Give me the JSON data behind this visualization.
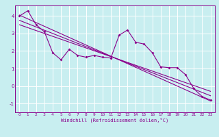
{
  "xlabel": "Windchill (Refroidissement éolien,°C)",
  "background_color": "#c8eef0",
  "line_color": "#8b008b",
  "grid_color": "#ffffff",
  "xlim": [
    -0.5,
    23.5
  ],
  "ylim": [
    -1.5,
    4.6
  ],
  "yticks": [
    -1,
    0,
    1,
    2,
    3,
    4
  ],
  "xticks": [
    0,
    1,
    2,
    3,
    4,
    5,
    6,
    7,
    8,
    9,
    10,
    11,
    12,
    13,
    14,
    15,
    16,
    17,
    18,
    19,
    20,
    21,
    22,
    23
  ],
  "data_x": [
    0,
    1,
    2,
    3,
    4,
    5,
    6,
    7,
    8,
    9,
    10,
    11,
    12,
    13,
    14,
    15,
    16,
    17,
    18,
    19,
    20,
    21,
    22,
    23
  ],
  "data_y": [
    4.0,
    4.3,
    3.5,
    3.1,
    1.9,
    1.5,
    2.1,
    1.75,
    1.65,
    1.75,
    1.65,
    1.6,
    2.9,
    3.2,
    2.5,
    2.4,
    1.9,
    1.1,
    1.05,
    1.05,
    0.65,
    -0.15,
    -0.6,
    -0.8
  ],
  "trend1_x": [
    0,
    23
  ],
  "trend1_y": [
    4.05,
    -0.85
  ],
  "trend2_x": [
    0,
    23
  ],
  "trend2_y": [
    3.75,
    -0.55
  ],
  "trend3_x": [
    0,
    23
  ],
  "trend3_y": [
    3.5,
    -0.3
  ]
}
